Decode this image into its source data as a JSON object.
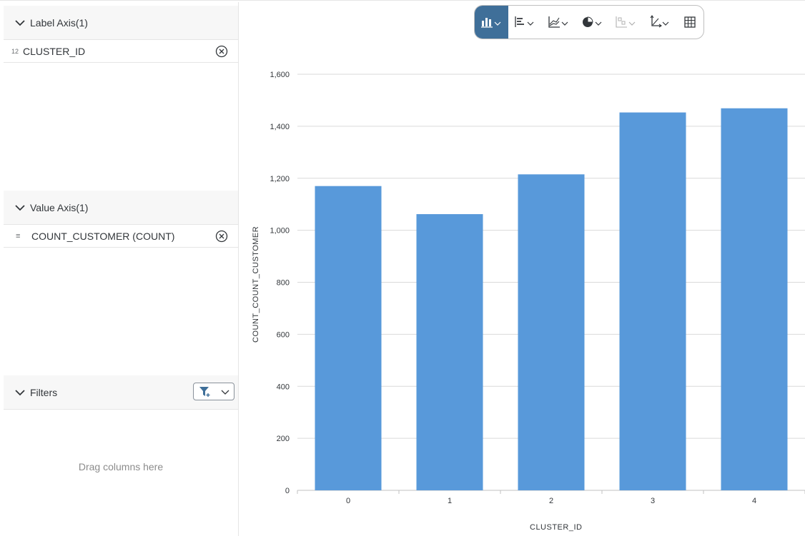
{
  "sidebar": {
    "label_axis": {
      "title": "Label Axis(1)",
      "field": {
        "type_icon": "12",
        "name": "CLUSTER_ID"
      }
    },
    "value_axis": {
      "title": "Value Axis(1)",
      "field": {
        "type_icon": "≡",
        "name": "COUNT_CUSTOMER (COUNT)"
      }
    },
    "filters": {
      "title": "Filters",
      "dropzone": "Drag columns here"
    }
  },
  "toolbar": {
    "buttons": [
      "column-chart-icon",
      "bar-chart-icon",
      "line-chart-icon",
      "pie-chart-icon",
      "scatter-chart-icon",
      "axis-chart-icon",
      "table-icon"
    ],
    "active": "column-chart-icon",
    "active_color": "#3f6f99"
  },
  "chart_data": {
    "type": "bar",
    "categories": [
      "0",
      "1",
      "2",
      "3",
      "4"
    ],
    "values": [
      1170,
      1062,
      1215,
      1453,
      1469
    ],
    "xlabel": "CLUSTER_ID",
    "ylabel": "COUNT_COUNT_CUSTOMER",
    "ylim": [
      0,
      1600
    ],
    "yticks": [
      "0",
      "200",
      "400",
      "600",
      "800",
      "1,000",
      "1,200",
      "1,400",
      "1,600"
    ],
    "grid": true,
    "bar_color": "#5899da"
  }
}
